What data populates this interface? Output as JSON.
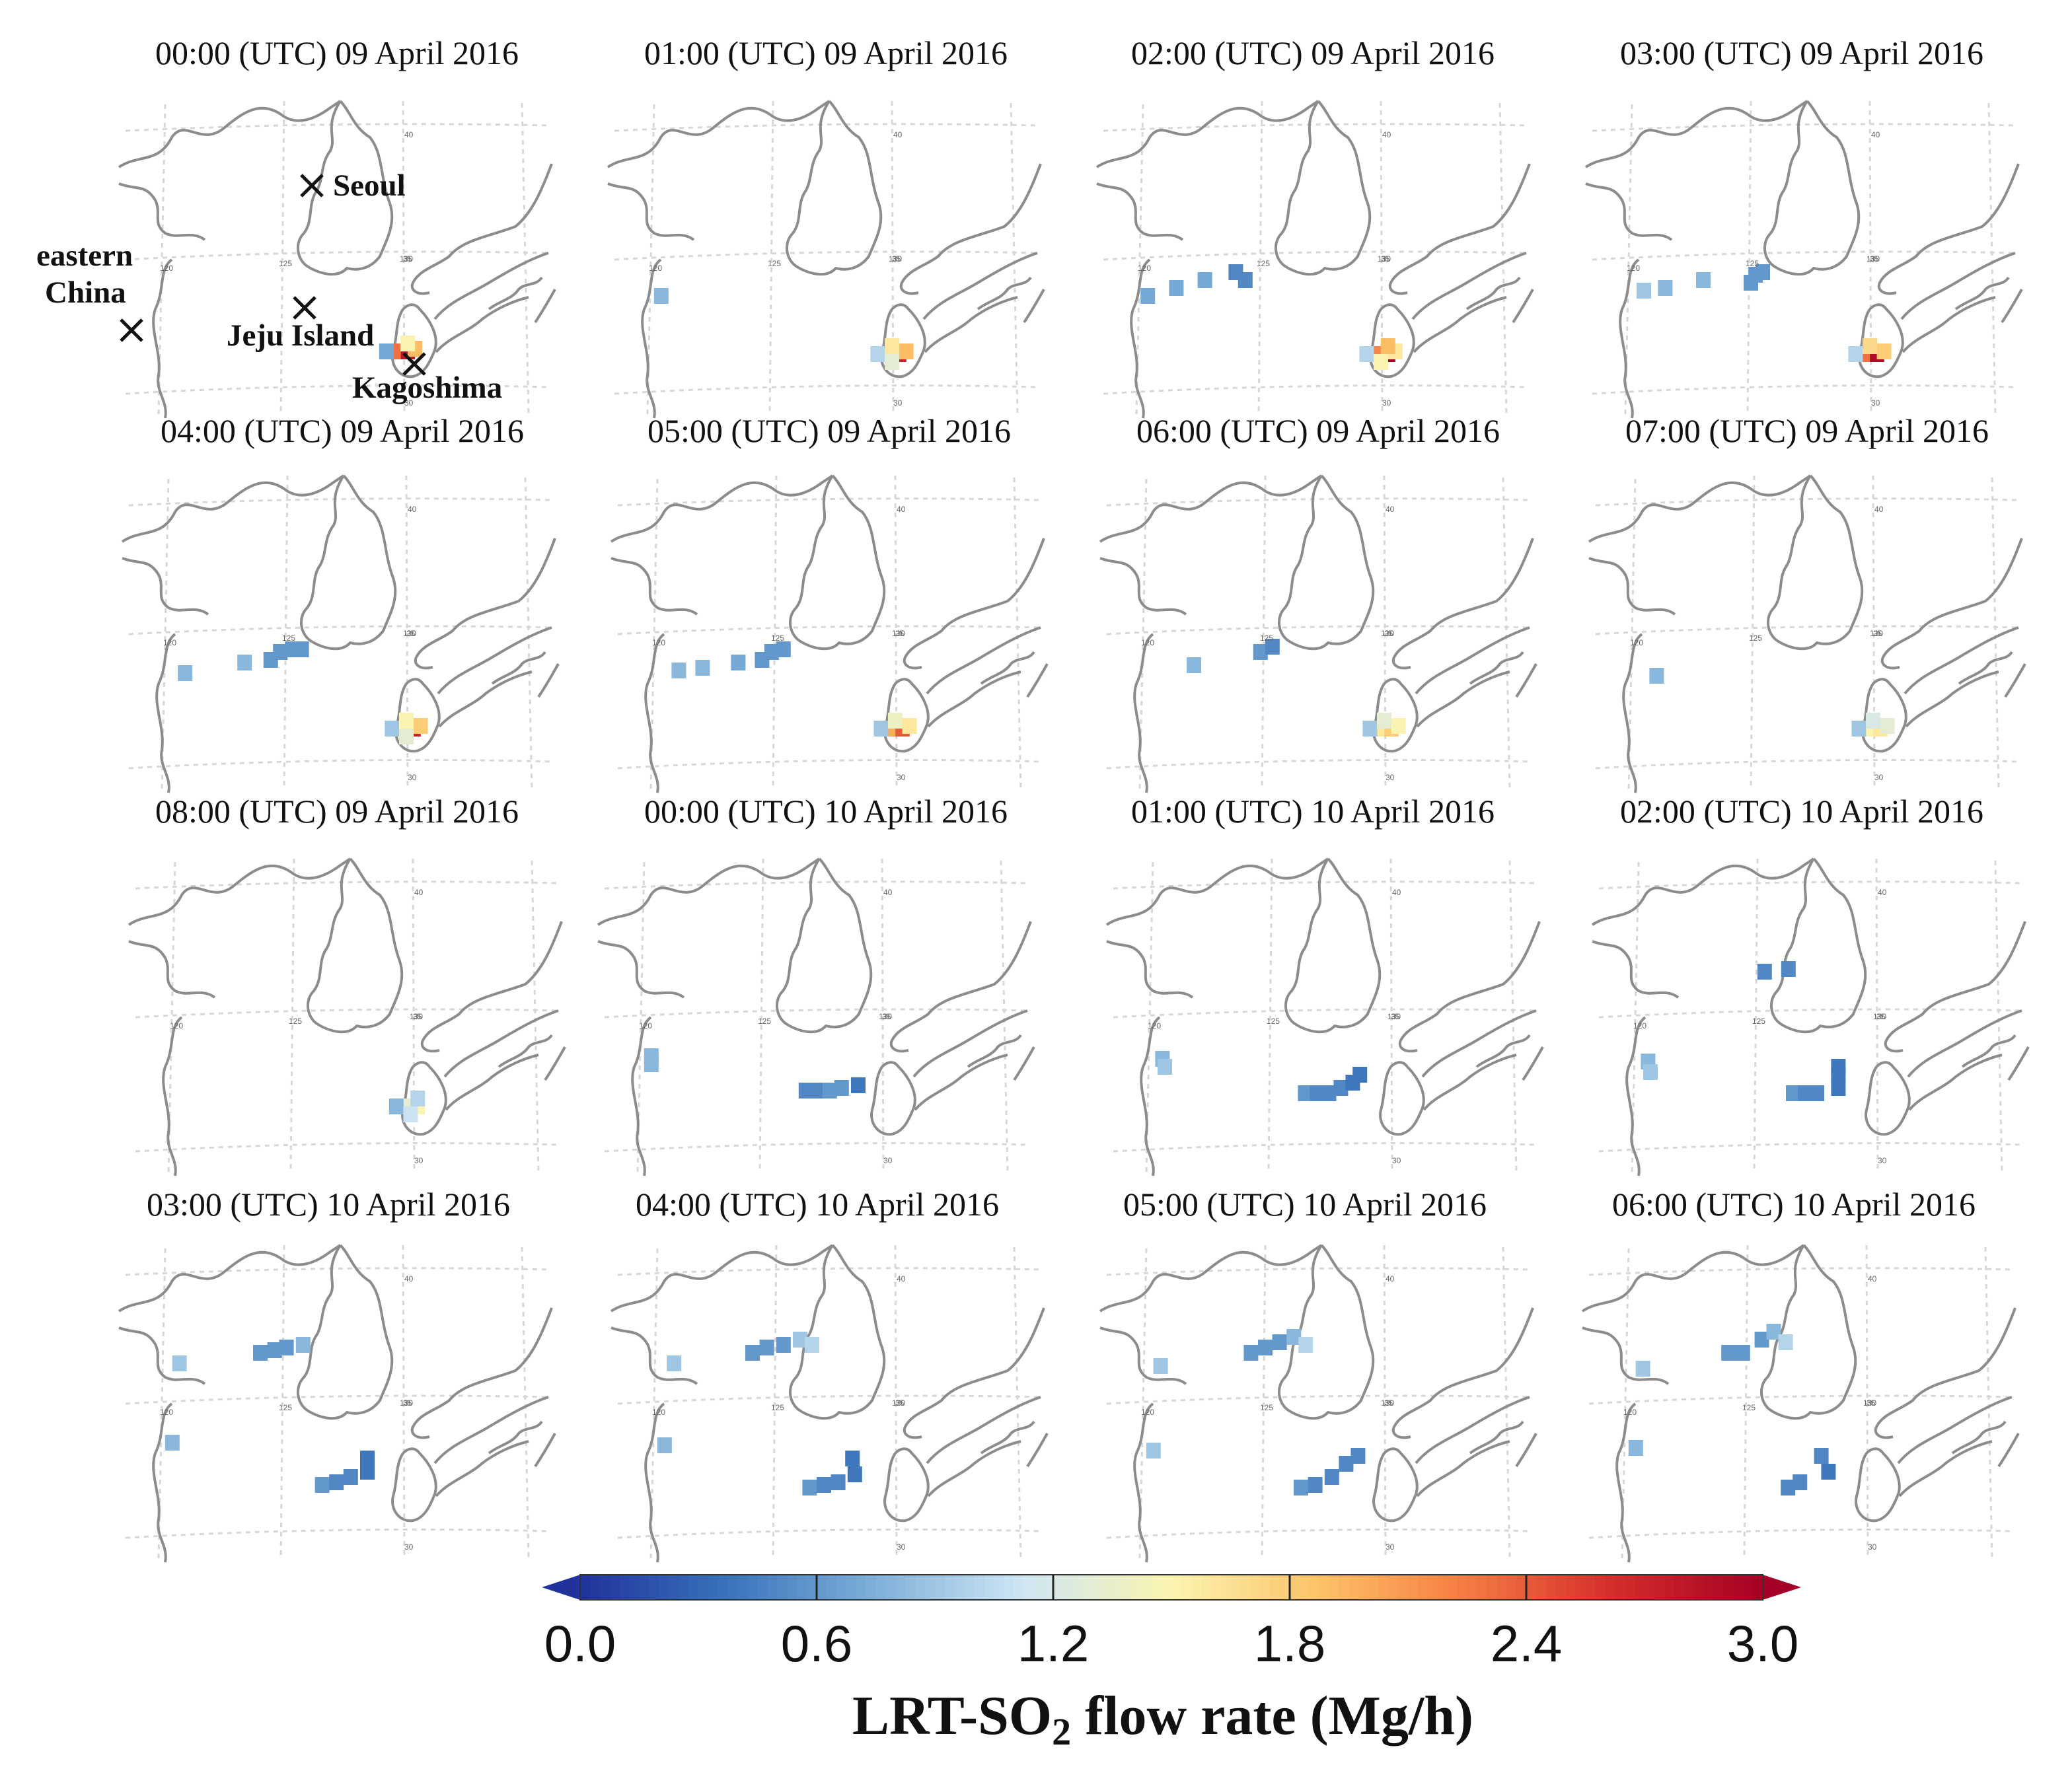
{
  "chart_data": {
    "type": "heatmap",
    "title": "",
    "colorbar": {
      "label_prefix": "LRT-SO",
      "label_sub": "2",
      "label_suffix": " flow rate (Mg/h)",
      "ticks": [
        "0.0",
        "0.6",
        "1.2",
        "1.8",
        "2.4",
        "3.0"
      ],
      "range": [
        0.0,
        3.0
      ],
      "colors": [
        "#20329b",
        "#3a73bb",
        "#7fb0d9",
        "#cfe6f3",
        "#fbf4b0",
        "#fdc268",
        "#f57b42",
        "#d32c2b",
        "#a50026"
      ]
    },
    "grid_labels": {
      "lon_120": "120",
      "lon_125": "125",
      "lon_130": "130",
      "lat_30": "30",
      "lat_35": "35",
      "lat_40": "40"
    },
    "locations": {
      "seoul": "Seoul",
      "eastern_china_1": "eastern",
      "eastern_china_2": "China",
      "jeju": "Jeju Island",
      "kagoshima": "Kagoshima"
    },
    "panels": [
      {
        "title": "00:00 (UTC) 09 April 2016",
        "cells": [
          [
            129.9,
            31.6,
            3.0
          ],
          [
            130.2,
            31.6,
            2.8
          ],
          [
            129.6,
            31.6,
            2.3
          ],
          [
            130.5,
            31.7,
            1.9
          ],
          [
            129.3,
            31.6,
            0.7
          ],
          [
            130.2,
            31.9,
            1.5
          ]
        ]
      },
      {
        "title": "01:00 (UTC) 09 April 2016",
        "cells": [
          [
            120.3,
            33.7,
            0.8
          ],
          [
            130.0,
            31.5,
            2.9
          ],
          [
            130.3,
            31.5,
            2.7
          ],
          [
            129.7,
            31.5,
            2.2
          ],
          [
            130.6,
            31.6,
            1.9
          ],
          [
            129.4,
            31.5,
            1.0
          ],
          [
            130.0,
            31.8,
            1.6
          ],
          [
            130.0,
            31.2,
            1.3
          ]
        ]
      },
      {
        "title": "02:00 (UTC) 09 April 2016",
        "cells": [
          [
            121.4,
            34.0,
            0.7
          ],
          [
            122.6,
            34.3,
            0.7
          ],
          [
            123.9,
            34.6,
            0.5
          ],
          [
            124.3,
            34.3,
            0.5
          ],
          [
            120.2,
            33.7,
            0.7
          ],
          [
            130.0,
            31.5,
            2.5
          ],
          [
            130.3,
            31.5,
            3.0
          ],
          [
            129.7,
            31.5,
            2.2
          ],
          [
            130.6,
            31.6,
            1.6
          ],
          [
            129.4,
            31.5,
            1.0
          ],
          [
            130.3,
            31.8,
            1.9
          ],
          [
            130.0,
            31.2,
            1.5
          ]
        ]
      },
      {
        "title": "03:00 (UTC) 09 April 2016",
        "cells": [
          [
            121.4,
            34.0,
            0.8
          ],
          [
            123.0,
            34.3,
            0.8
          ],
          [
            125.0,
            34.2,
            0.6
          ],
          [
            125.5,
            34.6,
            0.6
          ],
          [
            125.2,
            34.5,
            0.6
          ],
          [
            120.5,
            33.9,
            0.9
          ],
          [
            130.0,
            31.5,
            3.0
          ],
          [
            130.3,
            31.5,
            2.9
          ],
          [
            129.7,
            31.5,
            2.3
          ],
          [
            130.6,
            31.6,
            1.8
          ],
          [
            129.4,
            31.5,
            1.0
          ],
          [
            130.0,
            31.8,
            1.7
          ]
        ]
      },
      {
        "title": "04:00 (UTC) 09 April 2016",
        "cells": [
          [
            123.2,
            34.0,
            0.8
          ],
          [
            124.3,
            34.1,
            0.6
          ],
          [
            124.7,
            34.4,
            0.6
          ],
          [
            125.2,
            34.5,
            0.6
          ],
          [
            125.6,
            34.5,
            0.6
          ],
          [
            120.7,
            33.6,
            0.8
          ],
          [
            130.0,
            31.5,
            3.0
          ],
          [
            130.3,
            31.5,
            2.7
          ],
          [
            129.7,
            31.5,
            2.4
          ],
          [
            130.6,
            31.6,
            1.8
          ],
          [
            129.4,
            31.5,
            0.9
          ],
          [
            130.0,
            31.8,
            1.5
          ],
          [
            130.0,
            31.2,
            1.3
          ]
        ]
      },
      {
        "title": "05:00 (UTC) 09 April 2016",
        "cells": [
          [
            121.9,
            33.8,
            0.8
          ],
          [
            123.4,
            34.0,
            0.7
          ],
          [
            124.4,
            34.1,
            0.6
          ],
          [
            124.8,
            34.4,
            0.6
          ],
          [
            125.3,
            34.5,
            0.6
          ],
          [
            120.9,
            33.7,
            0.8
          ],
          [
            130.0,
            31.5,
            2.6
          ],
          [
            130.3,
            31.5,
            2.4
          ],
          [
            129.7,
            31.5,
            2.0
          ],
          [
            130.6,
            31.6,
            1.6
          ],
          [
            129.4,
            31.5,
            0.9
          ],
          [
            130.0,
            31.8,
            1.4
          ]
        ]
      },
      {
        "title": "06:00 (UTC) 09 April 2016",
        "cells": [
          [
            122.0,
            33.9,
            0.8
          ],
          [
            124.8,
            34.4,
            0.6
          ],
          [
            125.3,
            34.6,
            0.5
          ],
          [
            130.0,
            31.5,
            2.0
          ],
          [
            130.3,
            31.5,
            1.8
          ],
          [
            129.7,
            31.5,
            1.6
          ],
          [
            130.6,
            31.6,
            1.5
          ],
          [
            129.4,
            31.5,
            0.9
          ],
          [
            130.0,
            31.8,
            1.3
          ]
        ]
      },
      {
        "title": "07:00 (UTC) 09 April 2016",
        "cells": [
          [
            120.9,
            33.5,
            0.8
          ],
          [
            130.0,
            31.5,
            1.7
          ],
          [
            130.3,
            31.5,
            1.6
          ],
          [
            129.7,
            31.5,
            1.5
          ],
          [
            130.6,
            31.6,
            1.3
          ],
          [
            129.4,
            31.5,
            0.9
          ],
          [
            130.0,
            31.8,
            1.2
          ]
        ]
      },
      {
        "title": "08:00 (UTC) 09 April 2016",
        "cells": [
          [
            129.9,
            31.7,
            1.6
          ],
          [
            130.2,
            31.7,
            1.5
          ],
          [
            129.6,
            31.7,
            1.3
          ],
          [
            129.3,
            31.7,
            0.8
          ],
          [
            130.2,
            32.0,
            1.0
          ],
          [
            129.9,
            31.4,
            1.1
          ]
        ]
      },
      {
        "title": "00:00 (UTC) 10 April 2016",
        "cells": [
          [
            126.8,
            32.3,
            0.5
          ],
          [
            127.3,
            32.3,
            0.5
          ],
          [
            127.8,
            32.3,
            0.6
          ],
          [
            128.3,
            32.4,
            0.6
          ],
          [
            129.0,
            32.5,
            0.4
          ],
          [
            120.3,
            33.6,
            0.8
          ],
          [
            120.3,
            33.3,
            0.8
          ]
        ]
      },
      {
        "title": "01:00 (UTC) 10 April 2016",
        "cells": [
          [
            126.4,
            32.2,
            0.6
          ],
          [
            126.9,
            32.2,
            0.5
          ],
          [
            127.4,
            32.2,
            0.5
          ],
          [
            127.9,
            32.4,
            0.5
          ],
          [
            128.4,
            32.6,
            0.4
          ],
          [
            128.7,
            32.9,
            0.4
          ],
          [
            120.4,
            33.5,
            0.8
          ],
          [
            120.5,
            33.2,
            0.9
          ]
        ]
      },
      {
        "title": "02:00 (UTC) 10 April 2016",
        "cells": [
          [
            126.5,
            32.2,
            0.6
          ],
          [
            127.0,
            32.2,
            0.5
          ],
          [
            127.5,
            32.2,
            0.5
          ],
          [
            128.4,
            32.4,
            0.4
          ],
          [
            128.4,
            32.9,
            0.4
          ],
          [
            128.4,
            33.2,
            0.4
          ],
          [
            125.3,
            36.8,
            0.5
          ],
          [
            126.3,
            36.9,
            0.5
          ],
          [
            120.4,
            33.4,
            0.8
          ],
          [
            120.5,
            33.0,
            0.9
          ]
        ]
      },
      {
        "title": "03:00 (UTC) 10 April 2016",
        "cells": [
          [
            124.0,
            37.0,
            0.6
          ],
          [
            124.6,
            37.1,
            0.6
          ],
          [
            125.1,
            37.2,
            0.6
          ],
          [
            125.8,
            37.3,
            0.8
          ],
          [
            126.6,
            32.0,
            0.6
          ],
          [
            127.2,
            32.1,
            0.5
          ],
          [
            127.8,
            32.3,
            0.5
          ],
          [
            128.5,
            32.5,
            0.4
          ],
          [
            128.5,
            33.0,
            0.4
          ],
          [
            120.3,
            33.6,
            0.8
          ],
          [
            120.6,
            36.6,
            0.9
          ]
        ]
      },
      {
        "title": "04:00 (UTC) 10 April 2016",
        "cells": [
          [
            124.0,
            37.0,
            0.6
          ],
          [
            124.6,
            37.2,
            0.6
          ],
          [
            125.3,
            37.3,
            0.6
          ],
          [
            126.0,
            37.5,
            0.9
          ],
          [
            126.5,
            37.3,
            1.0
          ],
          [
            126.4,
            31.9,
            0.6
          ],
          [
            127.0,
            32.0,
            0.5
          ],
          [
            127.6,
            32.1,
            0.5
          ],
          [
            128.3,
            32.4,
            0.4
          ],
          [
            128.2,
            33.0,
            0.4
          ],
          [
            120.3,
            33.5,
            0.8
          ],
          [
            120.7,
            36.6,
            0.9
          ]
        ]
      },
      {
        "title": "05:00 (UTC) 10 April 2016",
        "cells": [
          [
            124.4,
            37.0,
            0.6
          ],
          [
            125.0,
            37.2,
            0.6
          ],
          [
            125.6,
            37.4,
            0.6
          ],
          [
            126.2,
            37.6,
            0.8
          ],
          [
            126.7,
            37.3,
            1.0
          ],
          [
            126.5,
            31.9,
            0.6
          ],
          [
            127.1,
            32.0,
            0.5
          ],
          [
            127.8,
            32.3,
            0.5
          ],
          [
            128.4,
            32.8,
            0.5
          ],
          [
            128.9,
            33.1,
            0.5
          ],
          [
            120.3,
            33.3,
            0.9
          ],
          [
            120.6,
            36.5,
            0.9
          ]
        ]
      },
      {
        "title": "06:00 (UTC) 10 April 2016",
        "cells": [
          [
            124.2,
            37.0,
            0.6
          ],
          [
            124.8,
            37.0,
            0.6
          ],
          [
            125.6,
            37.5,
            0.6
          ],
          [
            126.1,
            37.8,
            0.8
          ],
          [
            126.6,
            37.4,
            1.0
          ],
          [
            126.7,
            31.9,
            0.5
          ],
          [
            127.2,
            32.1,
            0.5
          ],
          [
            128.4,
            32.5,
            0.4
          ],
          [
            128.1,
            33.1,
            0.5
          ],
          [
            120.3,
            33.4,
            0.8
          ],
          [
            120.6,
            36.4,
            0.9
          ]
        ]
      }
    ]
  }
}
